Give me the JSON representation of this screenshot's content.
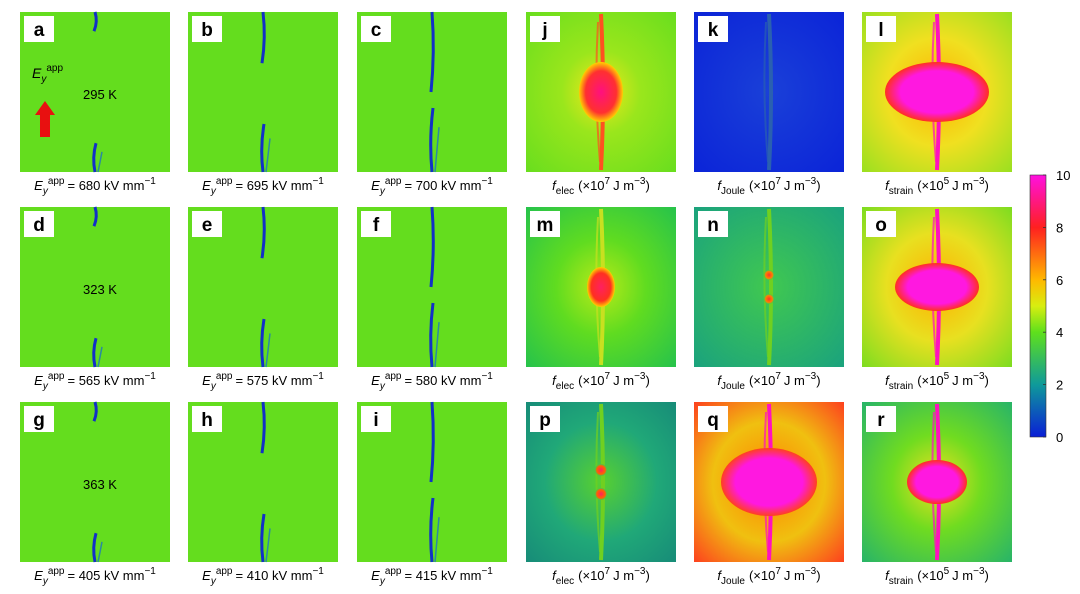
{
  "panels": [
    {
      "letter": "a",
      "note": "295 K",
      "caption": {
        "kind": "field",
        "parts": [
          "E",
          "y",
          "app",
          "= 680 kV mm",
          "−1"
        ]
      }
    },
    {
      "letter": "b",
      "caption": {
        "kind": "field",
        "parts": [
          "E",
          "y",
          "app",
          "= 695 kV mm",
          "−1"
        ]
      }
    },
    {
      "letter": "c",
      "caption": {
        "kind": "field",
        "parts": [
          "E",
          "y",
          "app",
          "= 700 kV mm",
          "−1"
        ]
      }
    },
    {
      "letter": "j",
      "caption": {
        "kind": "energy",
        "parts": [
          "f",
          "elec",
          "(×10",
          "7",
          "J m",
          "−3",
          ")"
        ]
      }
    },
    {
      "letter": "k",
      "caption": {
        "kind": "energy",
        "parts": [
          "f",
          "Joule",
          "(×10",
          "7",
          "J m",
          "−3",
          ")"
        ]
      }
    },
    {
      "letter": "l",
      "caption": {
        "kind": "energy",
        "parts": [
          "f",
          "strain",
          "(×10",
          "5",
          "J m",
          "−3",
          ")"
        ]
      }
    },
    {
      "letter": "d",
      "note": "323 K",
      "caption": {
        "kind": "field",
        "parts": [
          "E",
          "y",
          "app",
          "= 565 kV mm",
          "−1"
        ]
      }
    },
    {
      "letter": "e",
      "caption": {
        "kind": "field",
        "parts": [
          "E",
          "y",
          "app",
          "= 575 kV mm",
          "−1"
        ]
      }
    },
    {
      "letter": "f",
      "caption": {
        "kind": "field",
        "parts": [
          "E",
          "y",
          "app",
          "= 580 kV mm",
          "−1"
        ]
      }
    },
    {
      "letter": "m",
      "caption": {
        "kind": "energy",
        "parts": [
          "f",
          "elec",
          "(×10",
          "7",
          "J m",
          "−3",
          ")"
        ]
      }
    },
    {
      "letter": "n",
      "caption": {
        "kind": "energy",
        "parts": [
          "f",
          "Joule",
          "(×10",
          "7",
          "J m",
          "−3",
          ")"
        ]
      }
    },
    {
      "letter": "o",
      "caption": {
        "kind": "energy",
        "parts": [
          "f",
          "strain",
          "(×10",
          "5",
          "J m",
          "−3",
          ")"
        ]
      }
    },
    {
      "letter": "g",
      "note": "363 K",
      "caption": {
        "kind": "field",
        "parts": [
          "E",
          "y",
          "app",
          "= 405 kV mm",
          "−1"
        ]
      }
    },
    {
      "letter": "h",
      "caption": {
        "kind": "field",
        "parts": [
          "E",
          "y",
          "app",
          "= 410 kV mm",
          "−1"
        ]
      }
    },
    {
      "letter": "i",
      "caption": {
        "kind": "field",
        "parts": [
          "E",
          "y",
          "app",
          "= 415 kV mm",
          "−1"
        ]
      }
    },
    {
      "letter": "p",
      "caption": {
        "kind": "energy",
        "parts": [
          "f",
          "elec",
          "(×10",
          "7",
          "J m",
          "−3",
          ")"
        ]
      }
    },
    {
      "letter": "q",
      "caption": {
        "kind": "energy",
        "parts": [
          "f",
          "Joule",
          "(×10",
          "7",
          "J m",
          "−3",
          ")"
        ]
      }
    },
    {
      "letter": "r",
      "caption": {
        "kind": "energy",
        "parts": [
          "f",
          "strain",
          "(×10",
          "5",
          "J m",
          "−3",
          ")"
        ]
      }
    }
  ],
  "arrow_label": [
    "E",
    "y",
    "app"
  ],
  "colorbar": {
    "ylim": [
      0,
      10
    ],
    "yticks": [
      0,
      2,
      4,
      6,
      8,
      10
    ]
  }
}
